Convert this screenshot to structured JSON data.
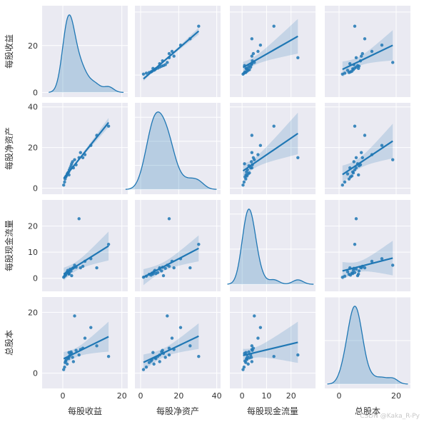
{
  "chart_data": {
    "type": "pairplot",
    "variables": [
      "每股收益",
      "每股净资产",
      "每股现金流量",
      "总股本"
    ],
    "ranges": [
      [
        -7,
        22
      ],
      [
        -3,
        42
      ],
      [
        -5,
        30
      ],
      [
        -5,
        25
      ]
    ],
    "diag_ylim": [
      [
        -2,
        37
      ],
      [
        -5,
        90
      ],
      [
        -2,
        24
      ],
      [
        -2,
        40
      ]
    ],
    "ticks": [
      [
        0,
        20
      ],
      [
        0,
        20,
        40
      ],
      [
        0,
        10,
        20
      ],
      [
        0,
        20
      ]
    ],
    "diag_ticks": [
      [
        0,
        20
      ],
      [
        0,
        25,
        50,
        75
      ],
      [
        0,
        10,
        20
      ],
      [
        0,
        20,
        40
      ]
    ],
    "colors": {
      "background": "#eaeaf2",
      "grid": "#ffffff",
      "series": "#1f77b4",
      "band": "#a7c4df",
      "text": "#333333"
    },
    "observations": [
      {
        "eps": 0.3,
        "bvps": 1.5,
        "cfps": 0.4,
        "shares": 1.2
      },
      {
        "eps": 0.6,
        "bvps": 3.0,
        "cfps": 0.8,
        "shares": 2.0
      },
      {
        "eps": 0.8,
        "bvps": 4.5,
        "cfps": 1.5,
        "shares": 3.5
      },
      {
        "eps": 1.0,
        "bvps": 5.5,
        "cfps": 1.2,
        "shares": 4.0
      },
      {
        "eps": 1.2,
        "bvps": 6.0,
        "cfps": 2.0,
        "shares": 4.5
      },
      {
        "eps": 1.5,
        "bvps": 7.0,
        "cfps": 2.5,
        "shares": 3.0
      },
      {
        "eps": 1.7,
        "bvps": 7.5,
        "cfps": 3.0,
        "shares": 5.0
      },
      {
        "eps": 2.0,
        "bvps": 8.0,
        "cfps": 1.8,
        "shares": 4.8
      },
      {
        "eps": 2.2,
        "bvps": 9.0,
        "cfps": 2.2,
        "shares": 5.5
      },
      {
        "eps": 2.5,
        "bvps": 10.0,
        "cfps": 3.5,
        "shares": 6.0
      },
      {
        "eps": 2.8,
        "bvps": 11.0,
        "cfps": 2.8,
        "shares": 7.0
      },
      {
        "eps": 3.0,
        "bvps": 12.0,
        "cfps": 1.0,
        "shares": 6.5
      },
      {
        "eps": 3.3,
        "bvps": 13.0,
        "cfps": 3.8,
        "shares": 5.2
      },
      {
        "eps": 3.6,
        "bvps": 10.0,
        "cfps": 4.0,
        "shares": 3.8
      },
      {
        "eps": 4.0,
        "bvps": 14.0,
        "cfps": 5.0,
        "shares": 18.8
      },
      {
        "eps": 4.5,
        "bvps": 11.5,
        "cfps": 4.2,
        "shares": 7.5
      },
      {
        "eps": 5.5,
        "bvps": 15.0,
        "cfps": 22.8,
        "shares": 6.0
      },
      {
        "eps": 6.0,
        "bvps": 17.5,
        "cfps": 4.0,
        "shares": 7.8
      },
      {
        "eps": 7.5,
        "bvps": 16.5,
        "cfps": 6.5,
        "shares": 11.5
      },
      {
        "eps": 9.5,
        "bvps": 21.0,
        "cfps": 7.5,
        "shares": 15.0
      },
      {
        "eps": 11.5,
        "bvps": 26.0,
        "cfps": 4.0,
        "shares": 9.0
      },
      {
        "eps": 15.5,
        "bvps": 30.5,
        "cfps": 13.0,
        "shares": 5.5
      },
      {
        "eps": 6.8,
        "bvps": 15.0,
        "cfps": 4.6,
        "shares": 8.2
      },
      {
        "eps": 2.1,
        "bvps": 6.5,
        "cfps": 1.6,
        "shares": 6.8
      }
    ]
  },
  "watermark": "CSDN @Kaka_R-Py"
}
